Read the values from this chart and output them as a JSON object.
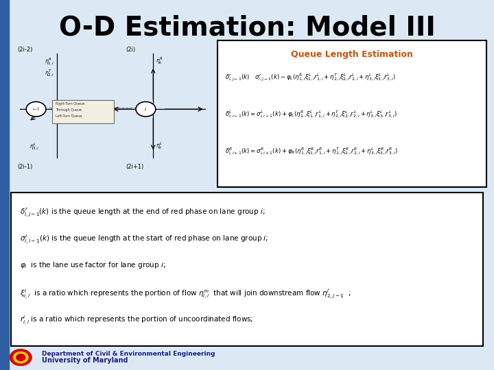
{
  "title": "O-D Estimation: Model III",
  "title_fontsize": 28,
  "title_color": "#000000",
  "bg_color": "#dce9f5",
  "slide_bg": "#c5d9ee",
  "blue_bar_color": "#2e5fa3",
  "blue_bar_width": 0.018,
  "queue_box_title": "Queue Length Estimation",
  "queue_box_title_color": "#c8500a",
  "queue_box_bg": "#ffffff",
  "queue_box_border": "#000000",
  "bottom_box_bg": "#ffffff",
  "bottom_box_border": "#000000",
  "footer_text1": "Department of Civil & Environmental Engineering",
  "footer_text2": "University of Maryland",
  "footer_color": "#1a1a8c",
  "lbl_2i2": "(2i-2)",
  "lbl_2i": "(2i)",
  "lbl_2i1": "(2i-1)",
  "lbl_2i1p": "(2i+1)"
}
